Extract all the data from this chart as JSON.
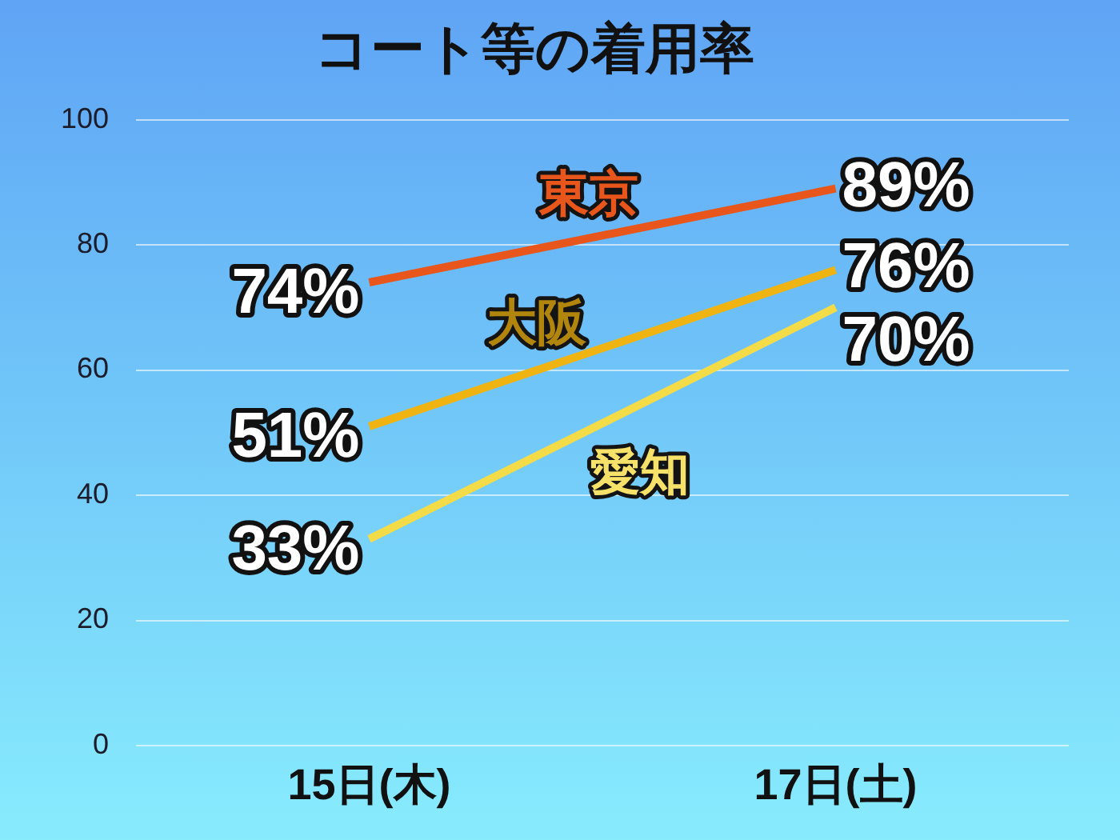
{
  "chart_data": {
    "type": "line",
    "title": "コート等の着用率",
    "categories": [
      "15日(木)",
      "17日(土)"
    ],
    "series": [
      {
        "name": "東京",
        "color": "#e8561c",
        "values": [
          74,
          89
        ],
        "value_labels": [
          "74%",
          "89%"
        ]
      },
      {
        "name": "大阪",
        "color": "#f0b412",
        "values": [
          51,
          76
        ],
        "value_labels": [
          "51%",
          "76%"
        ]
      },
      {
        "name": "愛知",
        "color": "#f4dc48",
        "values": [
          33,
          70
        ],
        "value_labels": [
          "33%",
          "70%"
        ]
      }
    ],
    "ylim": [
      0,
      100
    ],
    "yticks": [
      0,
      20,
      40,
      60,
      80,
      100
    ],
    "grid": "y",
    "marker": "none"
  }
}
